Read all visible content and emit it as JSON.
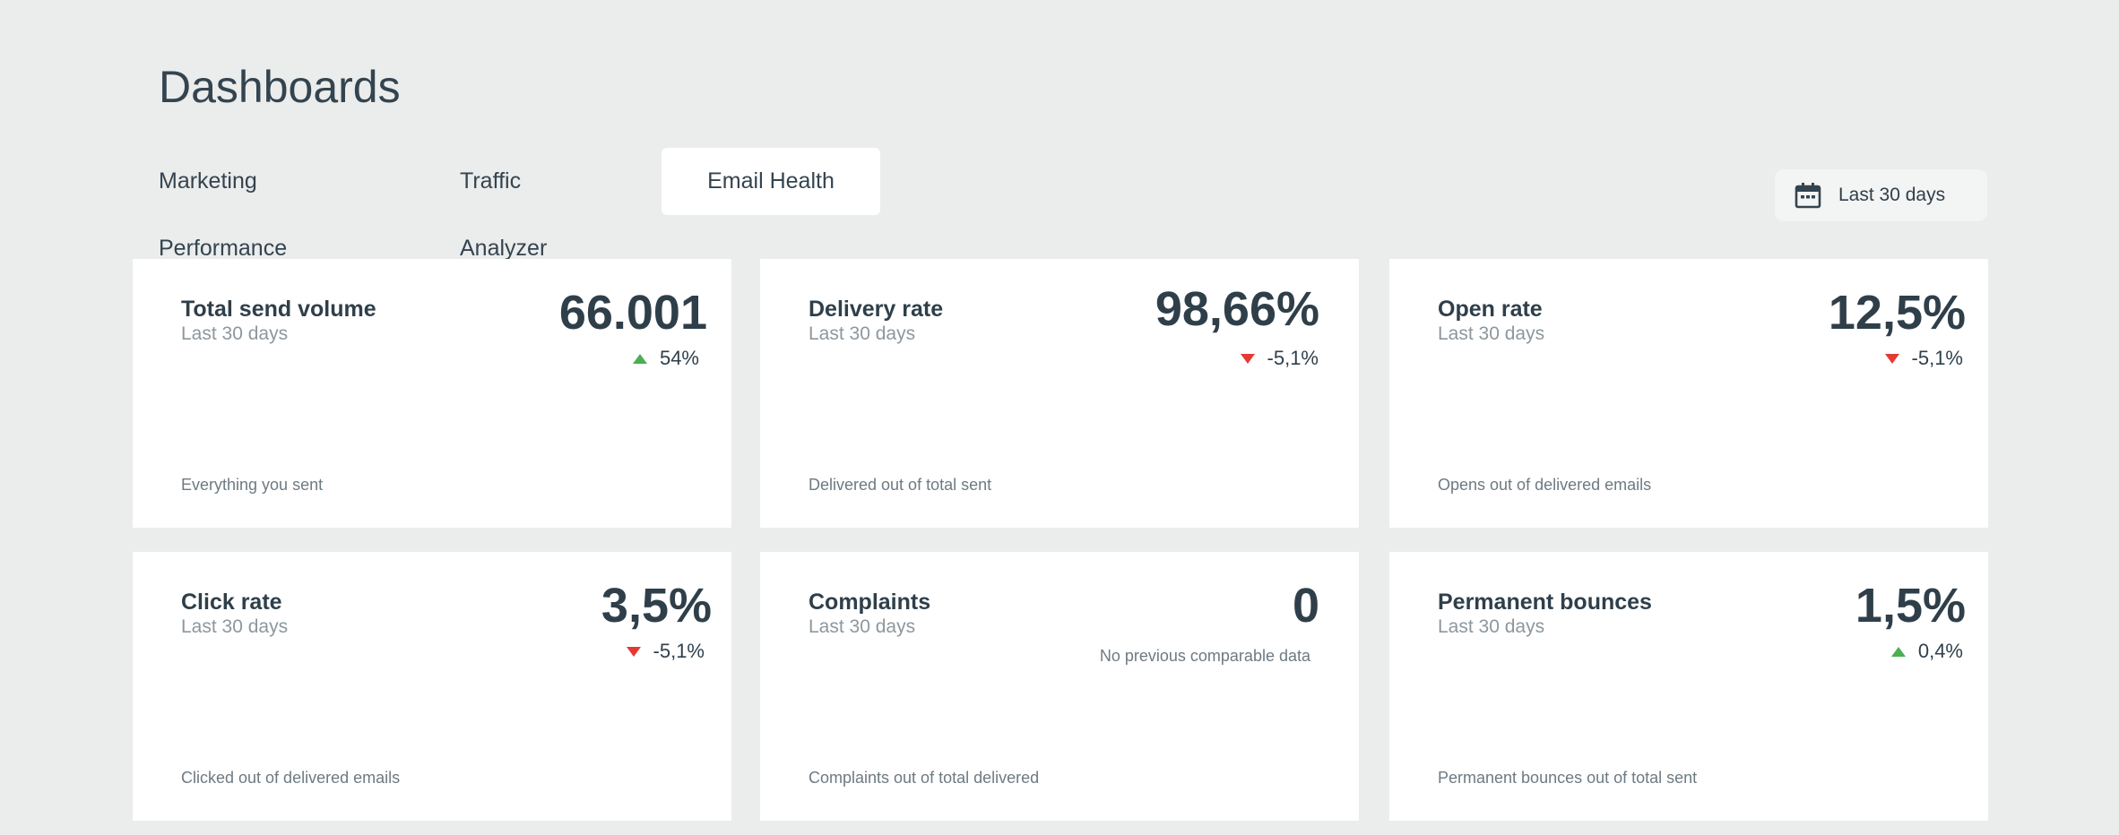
{
  "page": {
    "title": "Dashboards"
  },
  "tabs": [
    {
      "label": "Marketing Performance",
      "active": false
    },
    {
      "label": "Traffic Analyzer",
      "active": false
    },
    {
      "label": "Email Health",
      "active": true
    }
  ],
  "date_filter": {
    "label": "Last 30 days",
    "icon": "calendar-icon"
  },
  "colors": {
    "background": "#ebecec",
    "card": "#ffffff",
    "text_primary": "#2f3f4a",
    "text_muted": "#8d979d",
    "trend_up": "#4caf50",
    "trend_down": "#e53935"
  },
  "cards": [
    {
      "title": "Total send volume",
      "period": "Last 30 days",
      "value": "66.001",
      "change": "54%",
      "trend": "up",
      "description": "Everything you sent"
    },
    {
      "title": "Delivery rate",
      "period": "Last 30 days",
      "value": "98,66%",
      "change": "-5,1%",
      "trend": "down",
      "description": "Delivered out of total sent"
    },
    {
      "title": "Open rate",
      "period": "Last 30 days",
      "value": "12,5%",
      "change": "-5,1%",
      "trend": "down",
      "description": "Opens out of delivered emails"
    },
    {
      "title": "Click rate",
      "period": "Last 30 days",
      "value": "3,5%",
      "change": "-5,1%",
      "trend": "down",
      "description": "Clicked out of delivered emails"
    },
    {
      "title": "Complaints",
      "period": "Last 30 days",
      "value": "0",
      "note": "No previous comparable data",
      "description": "Complaints out of total delivered"
    },
    {
      "title": "Permanent bounces",
      "period": "Last 30 days",
      "value": "1,5%",
      "change": "0,4%",
      "trend": "up",
      "description": "Permanent bounces out of total sent"
    }
  ]
}
